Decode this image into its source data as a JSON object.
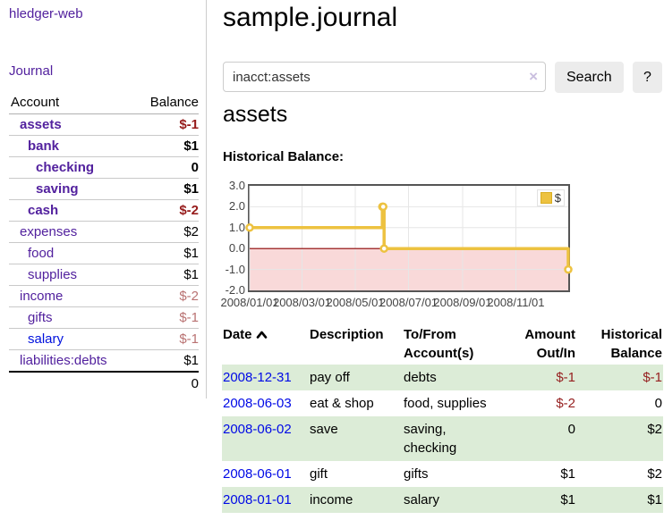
{
  "colors": {
    "accent_purple": "#52219e",
    "link_blue": "#0011dd",
    "date_link_blue": "#0009e6",
    "negative_strong": "#961b1b",
    "negative_soft": "#b97272",
    "table_negative": "#962020",
    "row_green": "#dcecd7",
    "chart_line_gold": "#EDC240"
  },
  "sidebar": {
    "app_title": "hledger-web",
    "nav_journal": "Journal",
    "accounts": {
      "header_account": "Account",
      "header_balance": "Balance",
      "rows": [
        {
          "label": "assets",
          "balance": "$-1"
        },
        {
          "label": "bank",
          "balance": "$1"
        },
        {
          "label": "checking",
          "balance": "0"
        },
        {
          "label": "saving",
          "balance": "$1"
        },
        {
          "label": "cash",
          "balance": "$-2"
        },
        {
          "label": "expenses",
          "balance": "$2"
        },
        {
          "label": "food",
          "balance": "$1"
        },
        {
          "label": "supplies",
          "balance": "$1"
        },
        {
          "label": "income",
          "balance": "$-2"
        },
        {
          "label": "gifts",
          "balance": "$-1"
        },
        {
          "label": "salary",
          "balance": "$-1"
        },
        {
          "label": "liabilities:debts",
          "balance": "$1"
        }
      ],
      "total": "0"
    }
  },
  "main": {
    "title": "sample.journal",
    "search": {
      "value": "inacct:assets",
      "clear": "×",
      "search_button": "Search",
      "help_button": "?"
    },
    "account_heading": "assets",
    "chart_heading": "Historical Balance:"
  },
  "chart_data": {
    "type": "line",
    "step": true,
    "title": "Historical Balance:",
    "legend": {
      "label": "$",
      "position": "top-right"
    },
    "series": [
      {
        "name": "$",
        "points": [
          [
            "2008-01-01",
            1
          ],
          [
            "2008-06-01",
            2
          ],
          [
            "2008-06-02",
            2
          ],
          [
            "2008-06-03",
            0
          ],
          [
            "2008-12-31",
            -1
          ]
        ]
      }
    ],
    "xlim": [
      "2008-01-01",
      "2008-12-31"
    ],
    "ylim": [
      -2,
      3
    ],
    "y_ticks": [
      3,
      2,
      1,
      0,
      -1,
      -2
    ],
    "grid_y": [
      2,
      1,
      -1
    ],
    "x_ticks": [
      "2008/01/01",
      "2008/03/01",
      "2008/05/01",
      "2008/07/01",
      "2008/09/01",
      "2008/11/01"
    ],
    "colors": {
      "line": "#EDC240",
      "marker_fill": "#FFFFFF",
      "negative_region": "#F9D9D9",
      "zero_line": "#8B0000",
      "grid": "#E6E6E6",
      "border": "#555555"
    }
  },
  "register": {
    "headers": {
      "date": "Date",
      "description": "Description",
      "tofrom_1": "To/From",
      "tofrom_2": "Account(s)",
      "amount_1": "Amount",
      "amount_2": "Out/In",
      "hist_1": "Historical",
      "hist_2": "Balance"
    },
    "rows": [
      {
        "date": "2008-12-31",
        "description": "pay off",
        "accounts": "debts",
        "amount": "$-1",
        "balance": "$-1"
      },
      {
        "date": "2008-06-03",
        "description": "eat & shop",
        "accounts": "food, supplies",
        "amount": "$-2",
        "balance": "0"
      },
      {
        "date": "2008-06-02",
        "description": "save",
        "accounts": "saving, checking",
        "amount": "0",
        "balance": "$2"
      },
      {
        "date": "2008-06-01",
        "description": "gift",
        "accounts": "gifts",
        "amount": "$1",
        "balance": "$2"
      },
      {
        "date": "2008-01-01",
        "description": "income",
        "accounts": "salary",
        "amount": "$1",
        "balance": "$1"
      }
    ]
  }
}
